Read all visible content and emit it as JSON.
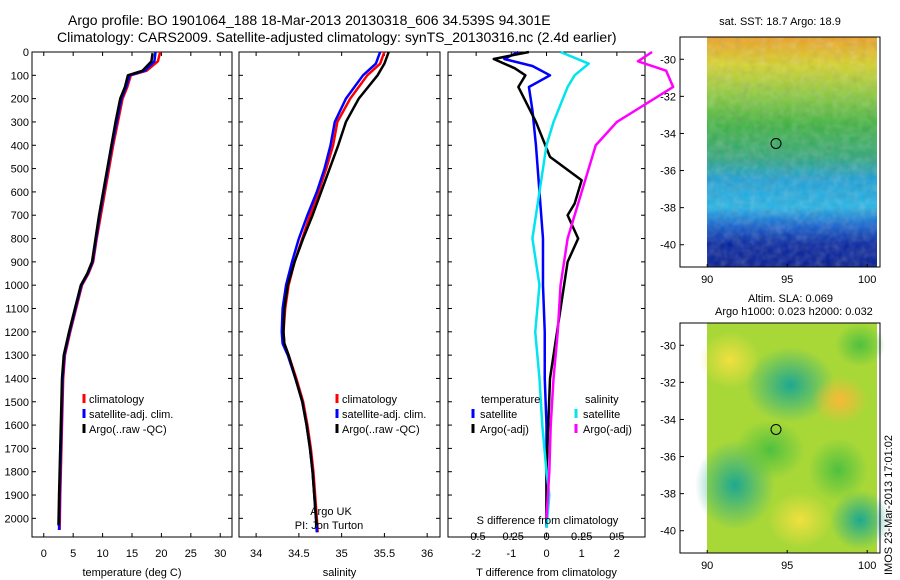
{
  "header": {
    "line1": "Argo profile: BO 1901064_188 18-Mar-2013 20130318_606 34.539S 94.301E",
    "line2": "Climatology: CARS2009. Satellite-adjusted climatology: synTS_20130316.nc (2.4d earlier)"
  },
  "side_label": "IMOS 23-Mar-2013 17:01:02",
  "colors": {
    "climatology": "#ff0000",
    "satellite": "#0000ff",
    "argo": "#000000",
    "s_satellite": "#00e5ee",
    "s_argo": "#ff00ff"
  },
  "depth_ticks": [
    "0",
    "100",
    "200",
    "300",
    "400",
    "500",
    "600",
    "700",
    "800",
    "900",
    "1000",
    "1100",
    "1200",
    "1300",
    "1400",
    "1500",
    "1600",
    "1700",
    "1800",
    "1900",
    "2000"
  ],
  "chart_data": [
    {
      "type": "line",
      "xlabel": "temperature (deg C)",
      "ylabel": "",
      "xlim": [
        -2,
        32
      ],
      "ylim": [
        2080,
        0
      ],
      "xticks": [
        "0",
        "5",
        "10",
        "15",
        "20",
        "25",
        "30"
      ],
      "legend": [
        "climatology",
        "satellite-adj. clim.",
        "Argo(..raw -QC)"
      ],
      "series": [
        {
          "name": "climatology",
          "x": [
            19.8,
            19.4,
            17.5,
            14.8,
            14.2,
            13.4,
            12.6,
            11.8,
            11.1,
            10.4,
            9.7,
            9.0,
            8.4,
            7.6,
            6.5,
            5.5,
            4.5,
            3.6,
            3.3,
            3.2,
            3.1,
            3.0,
            2.8,
            2.7
          ],
          "y": [
            0,
            40,
            80,
            100,
            150,
            200,
            300,
            400,
            500,
            600,
            700,
            800,
            900,
            950,
            1000,
            1100,
            1200,
            1300,
            1400,
            1500,
            1600,
            1700,
            1900,
            2050
          ]
        },
        {
          "name": "satellite-adj. clim.",
          "x": [
            19.0,
            18.8,
            17.2,
            14.6,
            14.0,
            13.2,
            12.4,
            11.6,
            10.9,
            10.2,
            9.5,
            8.9,
            8.3,
            7.5,
            6.4,
            5.4,
            4.4,
            3.5,
            3.2,
            3.1,
            3.0,
            2.9,
            2.7,
            2.6
          ],
          "y": [
            0,
            40,
            80,
            100,
            150,
            200,
            300,
            400,
            500,
            600,
            700,
            800,
            900,
            950,
            1000,
            1100,
            1200,
            1300,
            1400,
            1500,
            1600,
            1700,
            1900,
            2050
          ]
        },
        {
          "name": "Argo(..raw -QC)",
          "x": [
            18.5,
            18.3,
            16.8,
            14.3,
            13.8,
            13.0,
            12.2,
            11.5,
            10.8,
            10.1,
            9.4,
            8.8,
            8.2,
            7.4,
            6.3,
            5.3,
            4.3,
            3.4,
            3.1,
            3.0,
            2.9,
            2.8,
            2.6,
            2.5
          ],
          "y": [
            5,
            40,
            80,
            100,
            150,
            200,
            300,
            400,
            500,
            600,
            700,
            800,
            900,
            950,
            1000,
            1100,
            1200,
            1300,
            1400,
            1500,
            1600,
            1700,
            1900,
            2030
          ]
        }
      ]
    },
    {
      "type": "line",
      "xlabel": "salinity",
      "ylabel": "",
      "xlim": [
        33.8,
        36.15
      ],
      "ylim": [
        2080,
        0
      ],
      "xticks": [
        "34",
        "34.5",
        "35",
        "35.5",
        "36"
      ],
      "legend": [
        "climatology",
        "satellite-adj. clim.",
        "Argo(..raw -QC)"
      ],
      "annotation": [
        "Argo UK",
        "PI: Jon Turton"
      ],
      "series": [
        {
          "name": "climatology",
          "x": [
            35.5,
            35.45,
            35.3,
            35.1,
            34.95,
            34.9,
            34.82,
            34.73,
            34.63,
            34.54,
            34.45,
            34.38,
            34.34,
            34.32,
            34.33,
            34.38,
            34.47,
            34.55,
            34.6,
            34.64,
            34.67,
            34.69,
            34.71,
            34.72
          ],
          "y": [
            0,
            50,
            100,
            200,
            300,
            400,
            500,
            600,
            700,
            800,
            900,
            1000,
            1100,
            1200,
            1250,
            1300,
            1400,
            1500,
            1600,
            1700,
            1800,
            1900,
            2000,
            2060
          ]
        },
        {
          "name": "satellite-adj. clim.",
          "x": [
            35.45,
            35.4,
            35.25,
            35.05,
            34.92,
            34.87,
            34.8,
            34.71,
            34.6,
            34.5,
            34.42,
            34.35,
            34.31,
            34.3,
            34.31,
            34.37,
            34.46,
            34.54,
            34.59,
            34.63,
            34.66,
            34.68,
            34.7,
            34.71
          ],
          "y": [
            0,
            50,
            100,
            200,
            300,
            400,
            500,
            600,
            700,
            800,
            900,
            1000,
            1100,
            1200,
            1250,
            1300,
            1400,
            1500,
            1600,
            1700,
            1800,
            1900,
            2000,
            2060
          ]
        },
        {
          "name": "Argo(..raw -QC)",
          "x": [
            35.55,
            35.5,
            35.42,
            35.2,
            35.05,
            34.96,
            34.86,
            34.76,
            34.66,
            34.55,
            34.45,
            34.37,
            34.33,
            34.32,
            34.33,
            34.38,
            34.46,
            34.54,
            34.59,
            34.63,
            34.66,
            34.68,
            34.7,
            34.71
          ],
          "y": [
            0,
            50,
            100,
            200,
            300,
            400,
            500,
            600,
            700,
            800,
            900,
            1000,
            1100,
            1200,
            1250,
            1300,
            1400,
            1500,
            1600,
            1700,
            1800,
            1900,
            2000,
            2030
          ]
        }
      ]
    },
    {
      "type": "line",
      "title": "S difference from climatology",
      "xlabel": "T difference from climatology",
      "ylabel": "",
      "xlim": [
        -2.8,
        2.8
      ],
      "ylim": [
        2080,
        0
      ],
      "xticks_T": [
        "-2",
        "-1",
        "0",
        "1",
        "2"
      ],
      "xticks_S": [
        "-0.5",
        "-0.25",
        "0",
        "0.25",
        "0.5"
      ],
      "legend_headers": [
        "temperature",
        "salinity"
      ],
      "legend": [
        "satellite",
        "Argo(-adj)",
        "satellite",
        "Argo(-adj)"
      ],
      "series": [
        {
          "name": "satellite",
          "x": [
            -0.8,
            -1.2,
            -0.4,
            0.1,
            -0.5,
            -0.4,
            -0.3,
            -0.2,
            -0.1,
            -0.1,
            -0.05,
            -0.05,
            0,
            0,
            0,
            0
          ],
          "y": [
            0,
            30,
            60,
            100,
            150,
            250,
            400,
            600,
            800,
            1000,
            1200,
            1400,
            1600,
            1800,
            1900,
            2040
          ]
        },
        {
          "name": "Argo(-adj)",
          "x": [
            -0.5,
            -1.5,
            -0.9,
            -0.6,
            -0.8,
            -0.3,
            0.1,
            1.0,
            0.9,
            0.8,
            0.6,
            0.9,
            0.6,
            0.5,
            0.3,
            0.1,
            0.05,
            0,
            0
          ],
          "y": [
            0,
            30,
            70,
            100,
            150,
            300,
            450,
            550,
            600,
            650,
            700,
            800,
            900,
            1000,
            1200,
            1400,
            1600,
            1800,
            2030
          ]
        },
        {
          "name": "satellite",
          "x": [
            0.1,
            0.3,
            0.2,
            0.15,
            0.05,
            0,
            -0.05,
            -0.1,
            -0.05,
            -0.08,
            -0.05,
            -0.03,
            0,
            0.02,
            0
          ],
          "y": [
            0,
            50,
            100,
            150,
            300,
            400,
            600,
            800,
            1000,
            1200,
            1400,
            1600,
            1800,
            1900,
            2040
          ]
        },
        {
          "name": "Argo(-adj)",
          "x": [
            0.75,
            0.65,
            0.85,
            0.9,
            0.5,
            0.35,
            0.25,
            0.15,
            0.1,
            0.08,
            0.05,
            0.03,
            0.02,
            0
          ],
          "y": [
            0,
            40,
            80,
            150,
            300,
            400,
            600,
            800,
            1000,
            1200,
            1400,
            1600,
            1800,
            2000
          ]
        }
      ]
    },
    {
      "type": "heatmap",
      "title": "sat. SST: 18.7 Argo: 18.9",
      "xticks": [
        "90",
        "95",
        "100"
      ],
      "yticks": [
        "-30",
        "-32",
        "-34",
        "-36",
        "-38",
        "-40"
      ],
      "marker": [
        94.3,
        -34.54
      ]
    },
    {
      "type": "heatmap",
      "title": [
        "Altim. SLA: 0.069",
        "Argo h1000: 0.023 h2000: 0.032"
      ],
      "xticks": [
        "90",
        "95",
        "100"
      ],
      "yticks": [
        "-30",
        "-32",
        "-34",
        "-36",
        "-38",
        "-40"
      ],
      "marker": [
        94.3,
        -34.54
      ]
    }
  ]
}
